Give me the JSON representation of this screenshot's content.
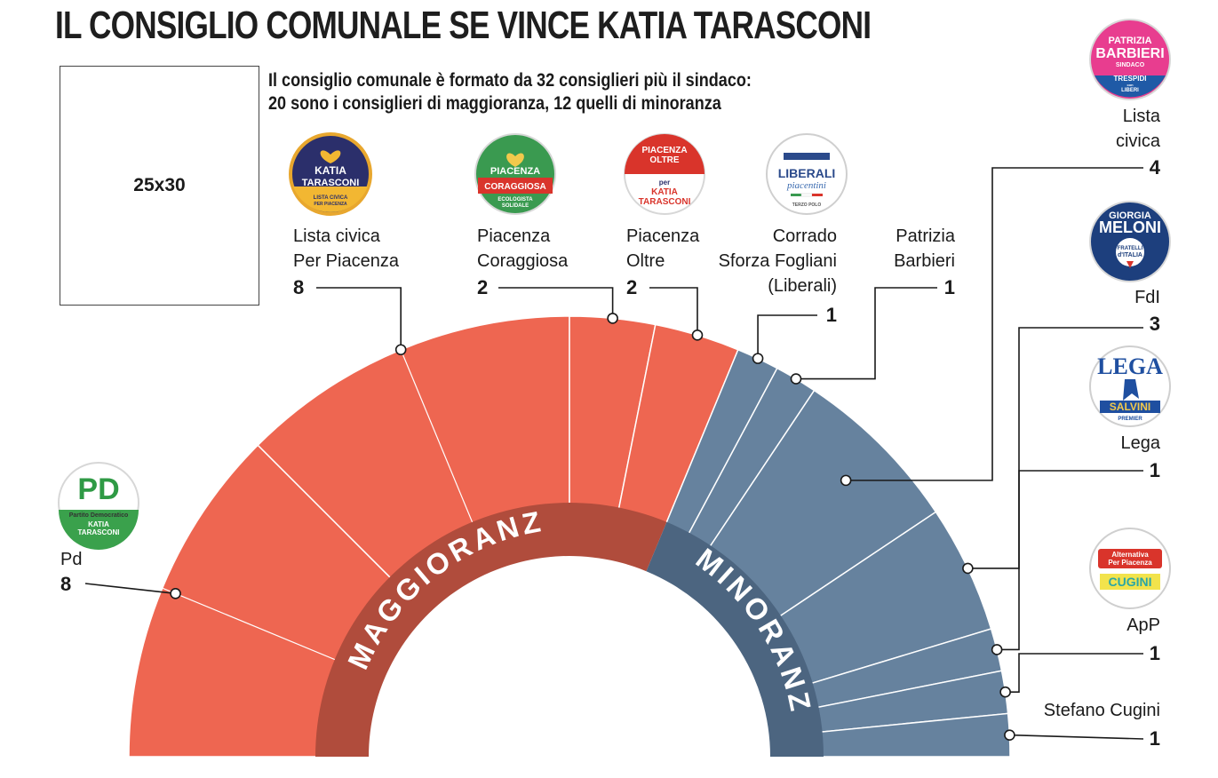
{
  "title": "IL CONSIGLIO COMUNALE SE VINCE KATIA TARASCONI",
  "subtitle_line1": "Il consiglio comunale è formato da 32 consiglieri più il sindaco:",
  "subtitle_line2": "20 sono i consiglieri di maggioranza, 12 quelli di minoranza",
  "photo_placeholder": "25x30",
  "band_majority": "MAGGIORANZA",
  "band_minority": "MINORANZA",
  "colors": {
    "majority": "#ee6651",
    "minority": "#66829e",
    "majority_band": "#b04c3c",
    "minority_band": "#4c6580"
  },
  "chart_data": {
    "type": "pie",
    "subtype": "half-donut (parliament)",
    "total_seats": 32,
    "groups": [
      {
        "name": "MAGGIORANZA",
        "total": 20
      },
      {
        "name": "MINORANZA",
        "total": 12
      }
    ],
    "parties": [
      {
        "label": [
          "Pd"
        ],
        "seats": 8,
        "group": "maggioranza",
        "logo": "pd-logo",
        "logo_text": [
          "PD",
          "Partito Democratico",
          "KATIA",
          "TARASCONI"
        ]
      },
      {
        "label": [
          "Lista civica",
          "Per Piacenza"
        ],
        "seats": 8,
        "group": "maggioranza",
        "logo": "katia-tarasconi-logo",
        "logo_text": [
          "KATIA",
          "TARASCONI",
          "LISTA CIVICA",
          "PER PIACENZA"
        ]
      },
      {
        "label": [
          "Piacenza",
          "Coraggiosa"
        ],
        "seats": 2,
        "group": "maggioranza",
        "logo": "piacenza-coraggiosa-logo",
        "logo_text": [
          "PIACENZA",
          "CORAGGIOSA",
          "ECOLOGISTA",
          "SOLIDALE"
        ]
      },
      {
        "label": [
          "Piacenza",
          "Oltre"
        ],
        "seats": 2,
        "group": "maggioranza",
        "logo": "piacenza-oltre-logo",
        "logo_text": [
          "PIACENZA",
          "OLTRE",
          "per",
          "KATIA",
          "TARASCONI"
        ]
      },
      {
        "label": [
          "Corrado",
          "Sforza Fogliani",
          "(Liberali)"
        ],
        "seats": 1,
        "group": "minoranza",
        "logo": "liberali-logo",
        "logo_text": [
          "LIBERALI",
          "piacentini",
          "TERZO POLO"
        ]
      },
      {
        "label": [
          "Patrizia",
          "Barbieri"
        ],
        "seats": 1,
        "group": "minoranza",
        "logo": ""
      },
      {
        "label": [
          "Lista",
          "civica"
        ],
        "seats": 4,
        "group": "minoranza",
        "logo": "barbieri-logo",
        "logo_text": [
          "PATRIZIA",
          "BARBIERI",
          "SINDACO",
          "TRESPIDI",
          "con",
          "LIBERI"
        ]
      },
      {
        "label": [
          "FdI"
        ],
        "seats": 3,
        "group": "minoranza",
        "logo": "fdi-logo",
        "logo_text": [
          "GIORGIA",
          "MELONI",
          "FRATELLI",
          "d'ITALIA"
        ]
      },
      {
        "label": [
          "Lega"
        ],
        "seats": 1,
        "group": "minoranza",
        "logo": "lega-logo",
        "logo_text": [
          "LEGA",
          "SALVINI",
          "PREMIER"
        ]
      },
      {
        "label": [
          "ApP"
        ],
        "seats": 1,
        "group": "minoranza",
        "logo": "app-logo",
        "logo_text": [
          "Alternativa",
          "Per Piacenza",
          "CUGINI"
        ]
      },
      {
        "label": [
          "Stefano Cugini"
        ],
        "seats": 1,
        "group": "minoranza",
        "logo": ""
      }
    ]
  }
}
